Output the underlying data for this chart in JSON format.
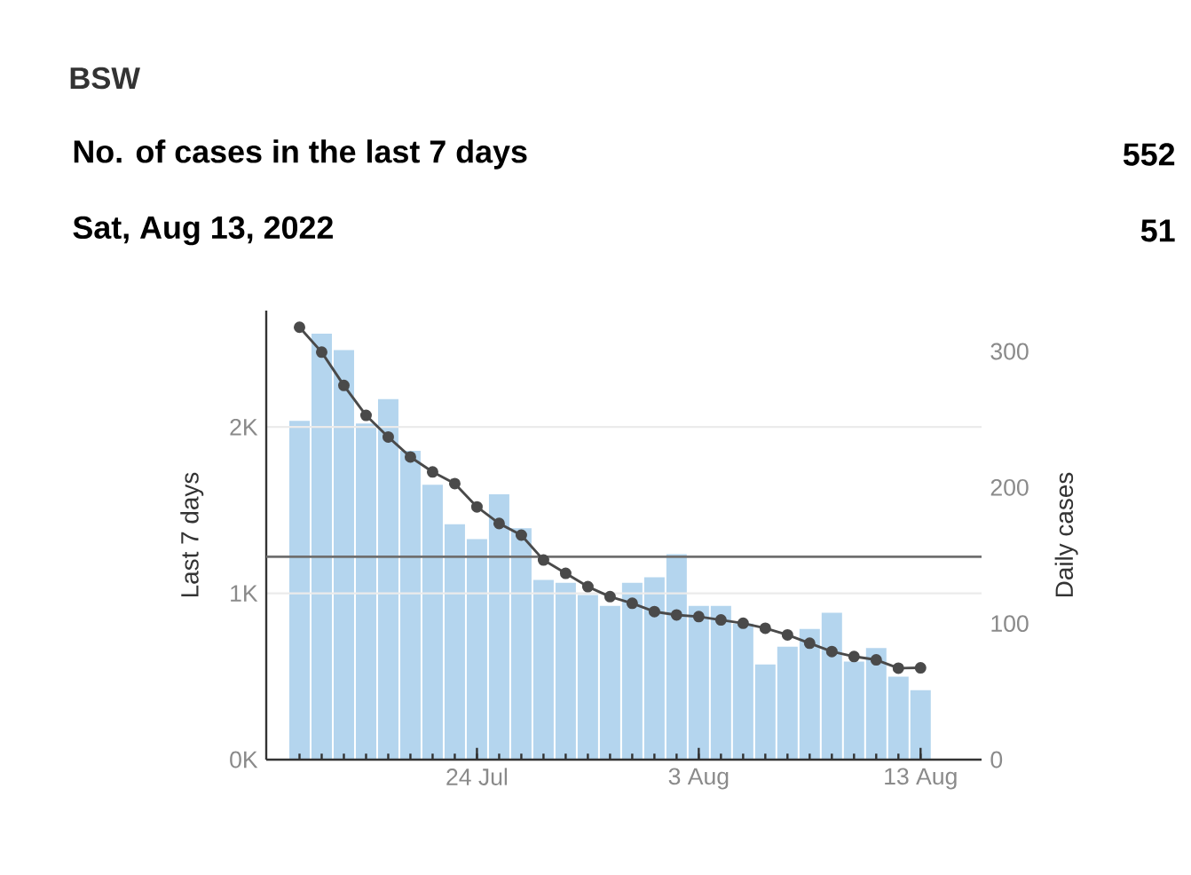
{
  "chart_data": {
    "type": "bar",
    "title": "BSW",
    "annotations": [
      "No. of cases in the last 7 days",
      "552",
      "Sat, Aug 13, 2022",
      "51"
    ],
    "ylabel": "Last 7 days",
    "y2label": "Daily cases",
    "x": [
      "2022-07-16",
      "2022-07-17",
      "2022-07-18",
      "2022-07-19",
      "2022-07-20",
      "2022-07-21",
      "2022-07-22",
      "2022-07-23",
      "2022-07-24",
      "2022-07-25",
      "2022-07-26",
      "2022-07-27",
      "2022-07-28",
      "2022-07-29",
      "2022-07-30",
      "2022-07-31",
      "2022-08-01",
      "2022-08-02",
      "2022-08-03",
      "2022-08-04",
      "2022-08-05",
      "2022-08-06",
      "2022-08-07",
      "2022-08-08",
      "2022-08-09",
      "2022-08-10",
      "2022-08-11",
      "2022-08-12",
      "2022-08-13"
    ],
    "xlim": [
      "2022-07-14T12:00",
      "2022-08-15T18:00"
    ],
    "xticks": [
      {
        "value": "2022-07-24",
        "label": "24 Jul"
      },
      {
        "value": "2022-08-03",
        "label": "3 Aug"
      },
      {
        "value": "2022-08-13",
        "label": "13 Aug"
      }
    ],
    "ylim": [
      0,
      2700
    ],
    "yticks": [
      {
        "value": 0,
        "label": "0K"
      },
      {
        "value": 1000,
        "label": "1K"
      },
      {
        "value": 2000,
        "label": "2K"
      }
    ],
    "y2lim": [
      0,
      330
    ],
    "y2ticks": [
      0,
      100,
      200,
      300
    ],
    "series": [
      {
        "axis": "y2",
        "color": "#b4d5ee",
        "values": [
          249,
          313,
          301,
          247,
          265,
          227,
          202,
          173,
          162,
          195,
          170,
          132,
          130,
          121,
          113,
          130,
          134,
          151,
          113,
          113,
          100,
          70,
          83,
          96,
          108,
          72,
          82,
          61,
          51
        ]
      },
      {
        "type": "line",
        "axis": "y",
        "color": "#4a4a4a",
        "marker": "circle",
        "line_style": "solid",
        "values": [
          2600,
          2450,
          2250,
          2070,
          1940,
          1820,
          1730,
          1660,
          1520,
          1420,
          1350,
          1200,
          1120,
          1040,
          980,
          940,
          890,
          870,
          860,
          840,
          820,
          790,
          750,
          700,
          650,
          620,
          600,
          550,
          552
        ]
      }
    ],
    "ref_lines": [
      {
        "axis": "y",
        "value": 1220,
        "color": "#6f6f6f"
      }
    ],
    "grid": "y"
  }
}
